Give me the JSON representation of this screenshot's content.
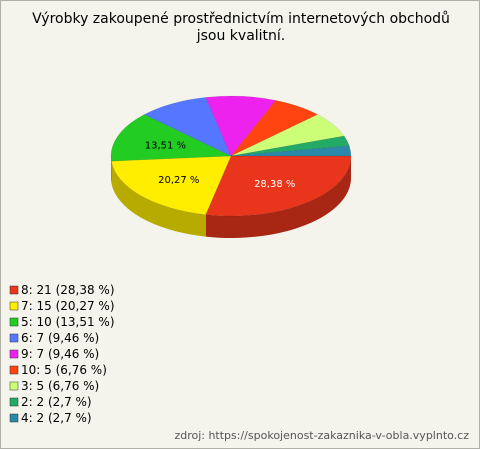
{
  "chart_data": {
    "type": "pie3d",
    "title": "Výrobky zakoupené prostřednictvím internetových obchodů jsou kvalitní.",
    "labels": [
      "8: 21 (28,38 %)",
      "7: 15 (20,27 %)",
      "5: 10 (13,51 %)",
      "6: 7 (9,46 %)",
      "9: 7 (9,46 %)",
      "10: 5 (6,76 %)",
      "3: 5 (6,76 %)",
      "2: 2 (2,7 %)",
      "4: 2 (2,7 %)"
    ],
    "values": [
      21,
      15,
      10,
      7,
      7,
      5,
      5,
      2,
      2
    ],
    "data_labels": [
      "28,38 %",
      "20,27 %",
      "13,51 %",
      null,
      null,
      null,
      null,
      null,
      null
    ],
    "colors": [
      "#e8351c",
      "#ffee00",
      "#22cc22",
      "#5577ff",
      "#ee22ee",
      "#ff4411",
      "#ccff77",
      "#22aa66",
      "#2a88aa"
    ],
    "source": "zdroj: https://spokojenost-zakaznika-v-obla.vyplnto.cz"
  }
}
